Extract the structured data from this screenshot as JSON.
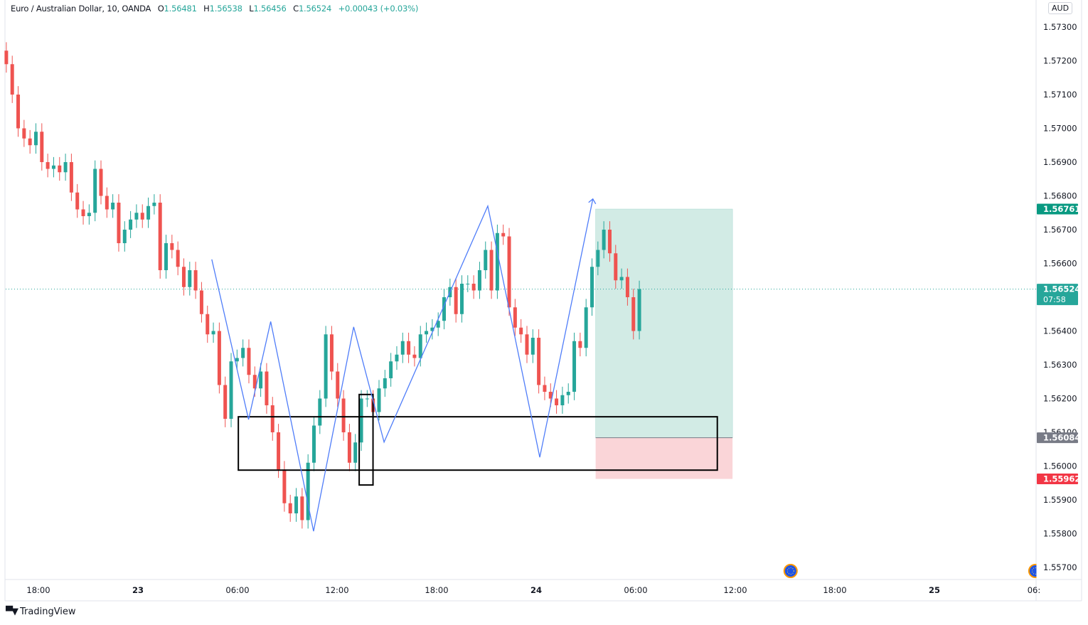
{
  "header": {
    "symbol": "Euro / Australian Dollar, 10, OANDA",
    "open_label": "O",
    "open": "1.56481",
    "high_label": "H",
    "high": "1.56538",
    "low_label": "L",
    "low": "1.56456",
    "close_label": "C",
    "close": "1.56524",
    "change": "+0.00043 (+0.03%)"
  },
  "currency": "AUD",
  "brand": {
    "name": "TradingView"
  },
  "colors": {
    "up": "#26a69a",
    "down": "#ef5350",
    "drawing_line": "#4f7df9",
    "box": "#000000",
    "target_fill": "#d2ebe5",
    "stop_fill": "#fad5d8",
    "target_badge": "#089981",
    "stop_badge": "#f23645",
    "entry_badge": "#787b86",
    "price_badge": "#26a69a"
  },
  "chart_data": {
    "type": "candlestick",
    "timeframe": "10",
    "ylim": [
      1.5565,
      1.5737
    ],
    "y_ticks": [
      "1.57300",
      "1.57200",
      "1.57100",
      "1.57000",
      "1.56900",
      "1.56800",
      "1.56700",
      "1.56600",
      "1.56400",
      "1.56300",
      "1.56200",
      "1.56100",
      "1.56000",
      "1.55900",
      "1.55800",
      "1.55700"
    ],
    "x_ticks": [
      {
        "t": "22 18:00",
        "label": "18:00"
      },
      {
        "t": "23 00:00",
        "label": "23",
        "bold": true
      },
      {
        "t": "23 06:00",
        "label": "06:00"
      },
      {
        "t": "23 12:00",
        "label": "12:00"
      },
      {
        "t": "23 18:00",
        "label": "18:00"
      },
      {
        "t": "24 00:00",
        "label": "24",
        "bold": true
      },
      {
        "t": "24 06:00",
        "label": "06:00"
      },
      {
        "t": "24 12:00",
        "label": "12:00"
      },
      {
        "t": "24 18:00",
        "label": "18:00"
      },
      {
        "t": "25 00:00",
        "label": "25",
        "bold": true
      },
      {
        "t": "25 06:00",
        "label": "06:"
      }
    ],
    "candles_start": "22 16:04",
    "candles_end": "24 06:13",
    "closes": [
      1.5719,
      1.571,
      1.57,
      1.5697,
      1.5695,
      1.5699,
      1.569,
      1.5688,
      1.5689,
      1.5687,
      1.569,
      1.5681,
      1.5676,
      1.5674,
      1.5675,
      1.5688,
      1.568,
      1.5676,
      1.5678,
      1.5666,
      1.567,
      1.5673,
      1.5675,
      1.5673,
      1.5677,
      1.5678,
      1.5658,
      1.5666,
      1.5664,
      1.5659,
      1.5653,
      1.5658,
      1.5652,
      1.5645,
      1.5639,
      1.564,
      1.5624,
      1.5614,
      1.5631,
      1.5632,
      1.5635,
      1.5627,
      1.5623,
      1.5628,
      1.5618,
      1.561,
      1.5599,
      1.5589,
      1.5586,
      1.5591,
      1.5584,
      1.5601,
      1.5612,
      1.562,
      1.5639,
      1.5628,
      1.562,
      1.561,
      1.5601,
      1.5607,
      1.562,
      1.562,
      1.5616,
      1.5623,
      1.5626,
      1.5631,
      1.5633,
      1.5637,
      1.5633,
      1.5632,
      1.5639,
      1.564,
      1.5641,
      1.5643,
      1.565,
      1.5653,
      1.5645,
      1.5654,
      1.5654,
      1.5652,
      1.5658,
      1.5664,
      1.5652,
      1.5669,
      1.5668,
      1.5647,
      1.5641,
      1.5639,
      1.5633,
      1.5638,
      1.5624,
      1.5622,
      1.562,
      1.5618,
      1.5621,
      1.5622,
      1.5637,
      1.5635,
      1.5647,
      1.5659,
      1.5664,
      1.567,
      1.5663,
      1.5655,
      1.5656,
      1.565,
      1.564,
      1.56524
    ],
    "current_price": {
      "price": 1.56524,
      "label": "1.56524",
      "countdown": "07:58"
    },
    "drawings": {
      "zigzag": [
        {
          "t": "23 04:27",
          "p": 1.56612
        },
        {
          "t": "23 06:40",
          "p": 1.56138
        },
        {
          "t": "23 08:00",
          "p": 1.56428
        },
        {
          "t": "23 10:35",
          "p": 1.55807
        },
        {
          "t": "23 13:00",
          "p": 1.56412
        },
        {
          "t": "23 14:50",
          "p": 1.56071
        },
        {
          "t": "23 21:05",
          "p": 1.5677
        },
        {
          "t": "24 00:13",
          "p": 1.56026
        },
        {
          "t": "24 03:25",
          "p": 1.56791
        }
      ],
      "zone_box": {
        "t1": "23 06:03",
        "t2": "24 10:55",
        "p1": 1.56146,
        "p2": 1.55988
      },
      "candle_box": {
        "t1": "23 13:20",
        "t2": "23 14:10",
        "p1": 1.56212,
        "p2": 1.55944
      },
      "long_position": {
        "t1": "24 03:35",
        "t2": "24 11:50",
        "entry": 1.56084,
        "target": 1.56761,
        "stop": 1.55962,
        "entry_label": "1.56084",
        "target_label": "1.56761",
        "stop_label": "1.55962"
      }
    },
    "events": [
      {
        "t": "24 15:20",
        "icon": "eu-flag-icon"
      },
      {
        "t": "25 06:05",
        "icon": "eu-flag-icon"
      }
    ]
  }
}
